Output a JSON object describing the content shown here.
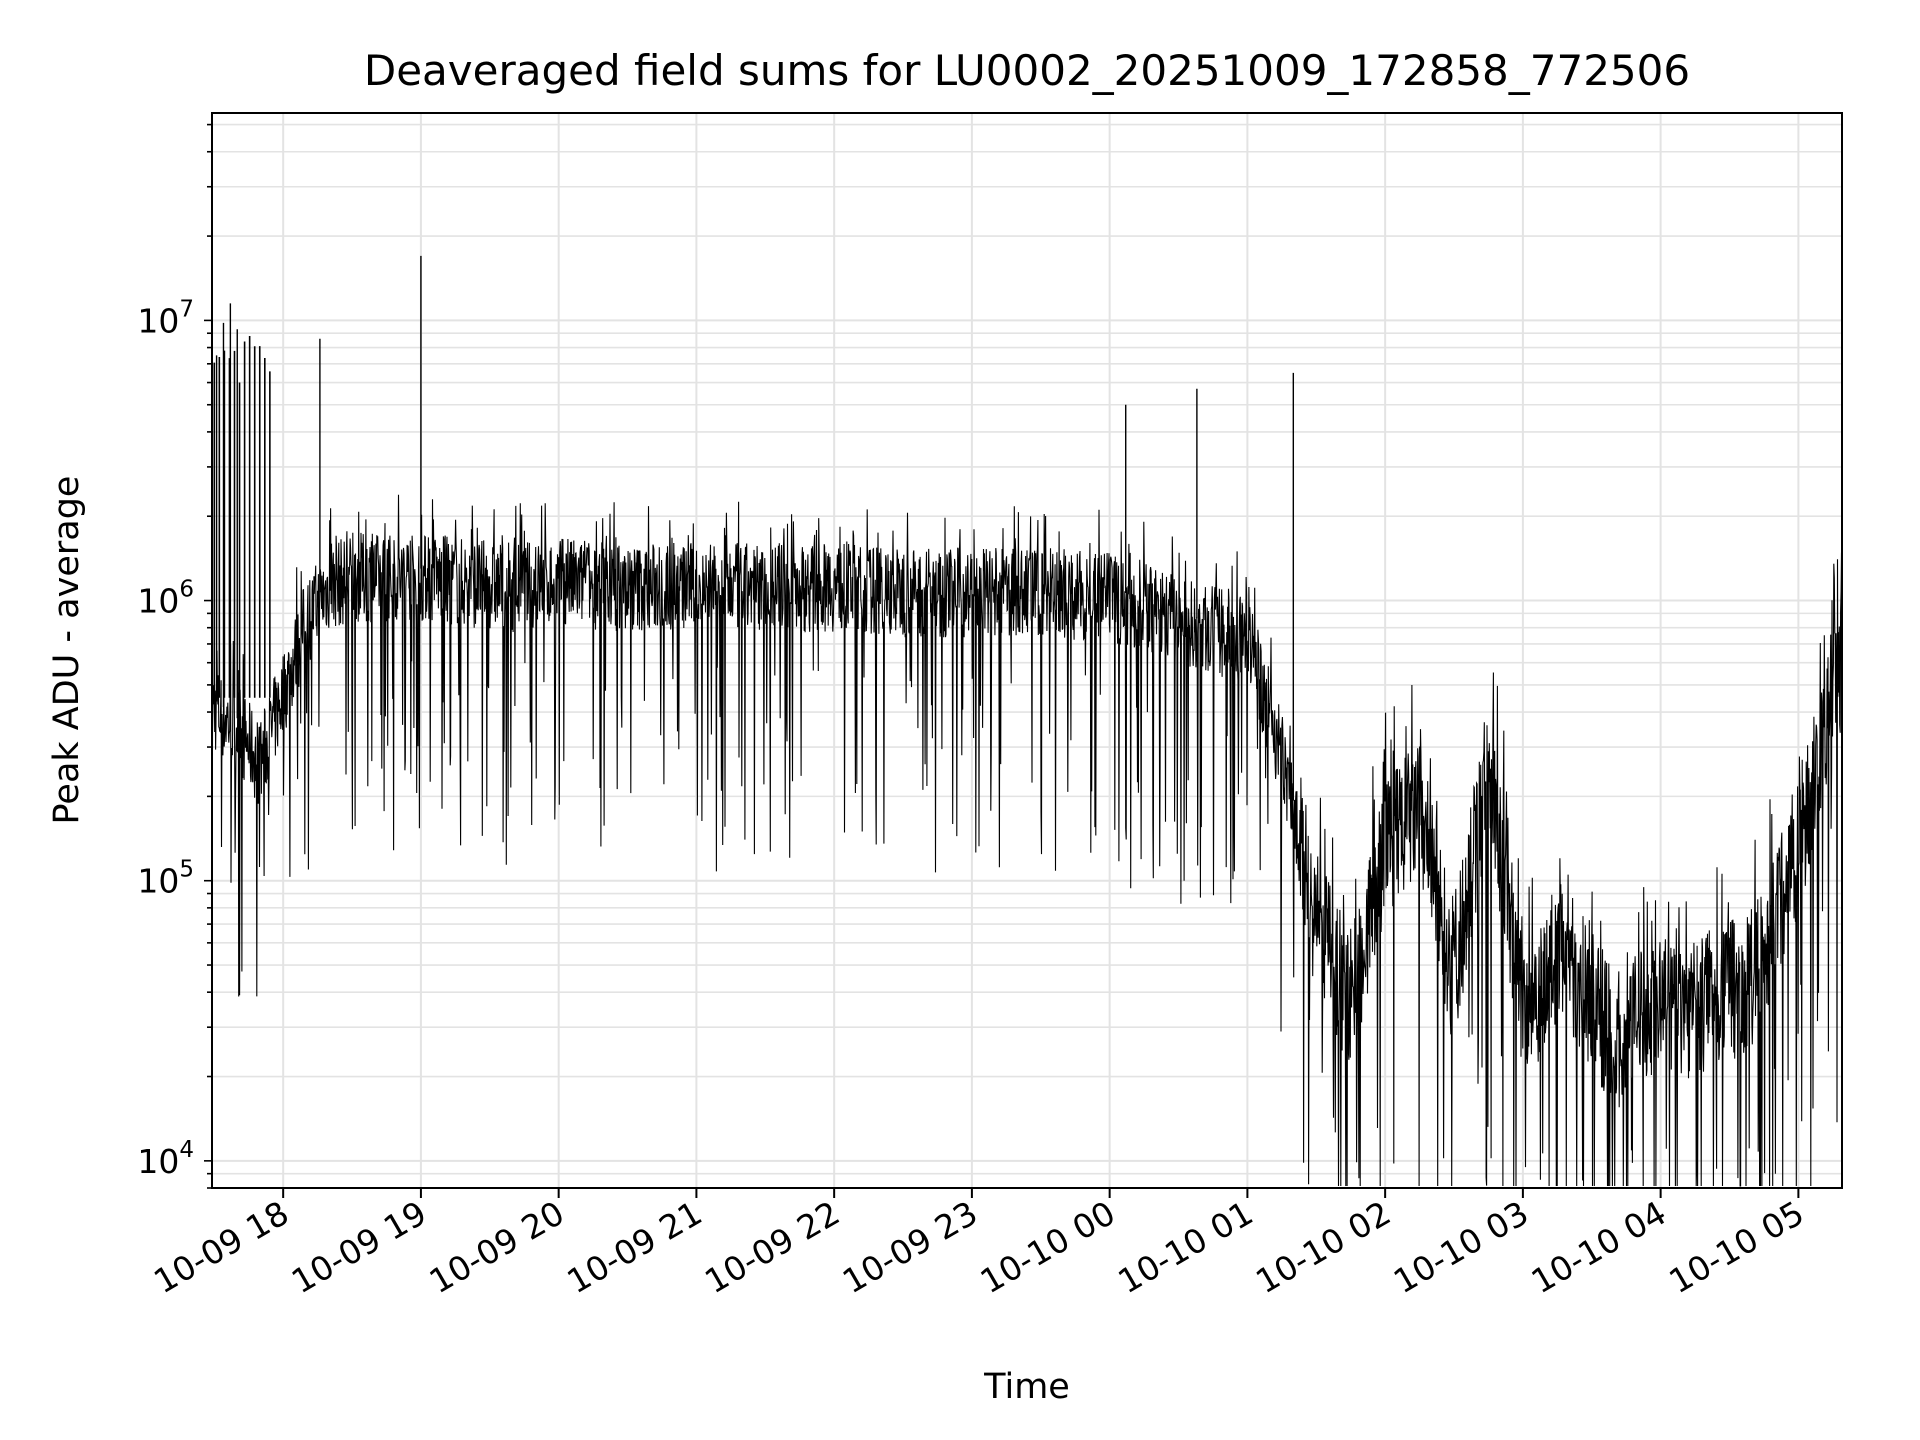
{
  "chart_data": {
    "type": "line",
    "title": "Deaveraged field sums for LU0002_20251009_172858_772506",
    "xlabel": "Time",
    "ylabel": "Peak ADU - average",
    "y_scale": "log",
    "ylim": [
      8000,
      55000000
    ],
    "xlim": [
      "2025-10-09 17:29",
      "2025-10-10 05:19"
    ],
    "grid": true,
    "legend": "none",
    "line_color": "#000000",
    "x_tick_labels": [
      "10-09 18",
      "10-09 19",
      "10-09 20",
      "10-09 21",
      "10-09 22",
      "10-09 23",
      "10-10 00",
      "10-10 01",
      "10-10 02",
      "10-10 03",
      "10-10 04",
      "10-10 05"
    ],
    "y_tick_labels": [
      {
        "base": "10",
        "exp": "4",
        "value": 10000
      },
      {
        "base": "10",
        "exp": "5",
        "value": 100000
      },
      {
        "base": "10",
        "exp": "6",
        "value": 1000000
      },
      {
        "base": "10",
        "exp": "7",
        "value": 10000000
      }
    ],
    "series": [
      {
        "x": [
          "2025-10-09 17:29",
          "2025-10-09 17:40",
          "2025-10-09 17:50",
          "2025-10-09 18:00",
          "2025-10-09 18:10",
          "2025-10-09 18:20",
          "2025-10-09 18:30",
          "2025-10-09 18:45",
          "2025-10-09 19:00",
          "2025-10-09 19:20",
          "2025-10-09 19:40",
          "2025-10-09 20:00",
          "2025-10-09 20:30",
          "2025-10-09 21:00",
          "2025-10-09 21:30",
          "2025-10-09 22:00",
          "2025-10-09 22:30",
          "2025-10-09 23:00",
          "2025-10-09 23:30",
          "2025-10-10 00:00",
          "2025-10-10 00:20",
          "2025-10-10 00:40",
          "2025-10-10 01:00",
          "2025-10-10 01:15",
          "2025-10-10 01:30",
          "2025-10-10 01:45",
          "2025-10-10 02:00",
          "2025-10-10 02:15",
          "2025-10-10 02:30",
          "2025-10-10 02:45",
          "2025-10-10 03:00",
          "2025-10-10 03:20",
          "2025-10-10 03:40",
          "2025-10-10 04:00",
          "2025-10-10 04:20",
          "2025-10-10 04:40",
          "2025-10-10 05:00",
          "2025-10-10 05:10",
          "2025-10-10 05:19"
        ],
        "y": [
          450000,
          380000,
          280000,
          500000,
          900000,
          1200000,
          1300000,
          1300000,
          1300000,
          1250000,
          1200000,
          1250000,
          1200000,
          1200000,
          1200000,
          1200000,
          1150000,
          1150000,
          1150000,
          1100000,
          1000000,
          850000,
          800000,
          300000,
          80000,
          40000,
          150000,
          200000,
          50000,
          300000,
          40000,
          60000,
          30000,
          40000,
          40000,
          50000,
          150000,
          350000,
          700000
        ],
        "spikes": [
          {
            "x": "2025-10-09 17:31",
            "y": 7500000
          },
          {
            "x": "2025-10-09 17:34",
            "y": 9800000
          },
          {
            "x": "2025-10-09 17:37",
            "y": 11500000
          },
          {
            "x": "2025-10-09 17:40",
            "y": 9300000
          },
          {
            "x": "2025-10-09 18:16",
            "y": 8600000
          },
          {
            "x": "2025-10-09 19:00",
            "y": 17000000
          },
          {
            "x": "2025-10-10 00:07",
            "y": 5000000
          },
          {
            "x": "2025-10-10 00:38",
            "y": 5700000
          },
          {
            "x": "2025-10-10 01:20",
            "y": 6500000
          }
        ]
      }
    ]
  }
}
